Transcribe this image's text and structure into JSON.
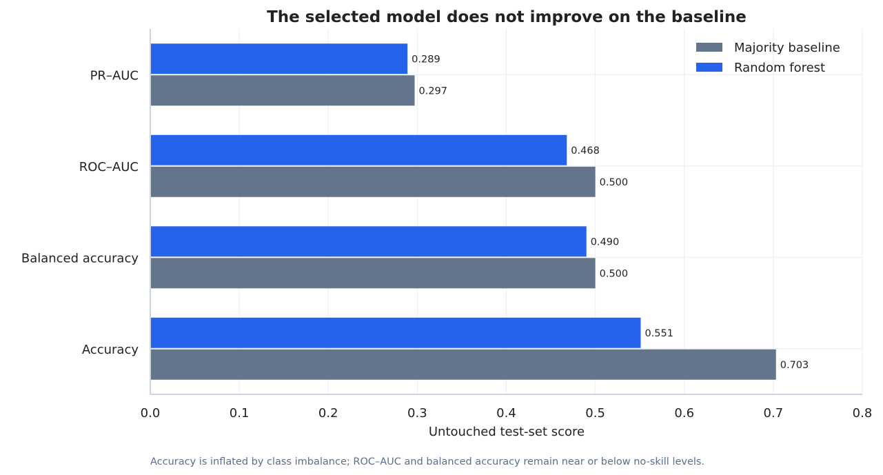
{
  "chart_data": {
    "type": "bar",
    "orientation": "horizontal",
    "title": "The selected model does not improve on the baseline",
    "xlabel": "Untouched test-set score",
    "ylabel": "",
    "xlim": [
      0,
      0.8
    ],
    "x_ticks": [
      "0.0",
      "0.1",
      "0.2",
      "0.3",
      "0.4",
      "0.5",
      "0.6",
      "0.7",
      "0.8"
    ],
    "categories": [
      "Accuracy",
      "Balanced accuracy",
      "ROC–AUC",
      "PR–AUC"
    ],
    "series": [
      {
        "name": "Majority baseline",
        "color": "#64748b",
        "values": [
          0.703,
          0.5,
          0.5,
          0.297
        ],
        "labels": [
          "0.703",
          "0.500",
          "0.500",
          "0.297"
        ]
      },
      {
        "name": "Random forest",
        "color": "#2563eb",
        "values": [
          0.551,
          0.49,
          0.468,
          0.289
        ],
        "labels": [
          "0.551",
          "0.490",
          "0.468",
          "0.289"
        ]
      }
    ],
    "grid": true,
    "legend_position": "top-right",
    "caption": "Accuracy is inflated by class imbalance; ROC–AUC and balanced accuracy remain near or below no-skill levels."
  }
}
